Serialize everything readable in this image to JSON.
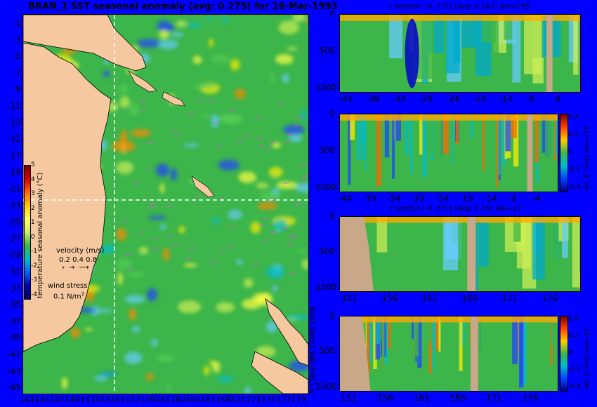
{
  "map": {
    "title": "BRAN_1 SST seasonal anomaly (avg: 0.275) for 16-Mar-1993",
    "colorbar_label": "temperature seasonal anomaly (°C)",
    "velocity_label": "velocity (m/s)",
    "velocity_scale": "0.2 0.4 0.8",
    "wind_label": "wind stress",
    "wind_scale": "0.1 N/m",
    "wind_scale_sup": "2",
    "colors": {
      "land": "#f5c8a0",
      "ocean": "#3cb54a",
      "background": "#0000ff",
      "crosshair": "#ffffff",
      "arrows": "#ff44ff"
    }
  },
  "copyright": "© Copyright CSIRO 2006",
  "chart_data": [
    {
      "type": "heatmap",
      "name": "sst-map",
      "title": "BRAN_1 SST seasonal anomaly (avg: 0.275) for 16-Mar-1993",
      "x_ticks": [
        "143",
        "145",
        "147",
        "149",
        "151",
        "153",
        "155",
        "157",
        "159",
        "161",
        "163",
        "165",
        "167",
        "169",
        "171",
        "173",
        "175",
        "177",
        "179"
      ],
      "y_ticks": [
        "-1",
        "-3",
        "-5",
        "-7",
        "-9",
        "-11",
        "-13",
        "-15",
        "-17",
        "-19",
        "-21",
        "-23",
        "-25",
        "-27",
        "-29",
        "-31",
        "-33",
        "-35",
        "-37",
        "-39",
        "-41",
        "-43",
        "-45"
      ],
      "xlim": [
        142,
        180
      ],
      "ylim": [
        -45,
        0
      ],
      "colorbar": {
        "label": "temperature seasonal anomaly (°C)",
        "ticks": [
          "5",
          "4",
          "3",
          "2",
          "1",
          "0",
          "-1",
          "-2",
          "-3",
          "-4"
        ],
        "range": [
          -4,
          5
        ]
      },
      "crosshair": {
        "lon": 155,
        "lat": -22
      }
    },
    {
      "type": "heatmap",
      "name": "t-section-lon",
      "title": "t section (-4..5°C) (avg: 0.167) lon=155",
      "x_ticks": [
        "-44",
        "-39",
        "-34",
        "-29",
        "-24",
        "-19",
        "-14",
        "-9",
        "-4"
      ],
      "y_ticks": [
        "0",
        "500",
        "1000"
      ],
      "xlim": [
        -45,
        0
      ],
      "ylim": [
        1050,
        0
      ]
    },
    {
      "type": "heatmap",
      "name": "vel-e-section-lon",
      "title": "",
      "x_ticks": [
        "-44",
        "-39",
        "-34",
        "-29",
        "-24",
        "-19",
        "-14",
        "-9",
        "-4"
      ],
      "y_ticks": [
        "0",
        "500",
        "1000"
      ],
      "xlim": [
        -45,
        0
      ],
      "ylim": [
        1050,
        0
      ],
      "colorbar": {
        "label": "vel. E (m/s) lon=155",
        "ticks": [
          "0.4",
          "0.2",
          "0",
          "-0.2",
          "-0.4"
        ],
        "range": [
          -0.4,
          0.4
        ]
      }
    },
    {
      "type": "heatmap",
      "name": "t-section-lat",
      "title": "t section (-4..5°C) (avg: 1.19) lat=-22",
      "x_ticks": [
        "151",
        "156",
        "161",
        "166",
        "171",
        "176"
      ],
      "y_ticks": [
        "0",
        "500",
        "1000"
      ],
      "xlim": [
        150,
        180
      ],
      "ylim": [
        1050,
        0
      ]
    },
    {
      "type": "heatmap",
      "name": "vel-e-section-lat",
      "title": "",
      "x_ticks": [
        "151",
        "156",
        "161",
        "166",
        "171",
        "176"
      ],
      "y_ticks": [
        "0",
        "500",
        "1000"
      ],
      "xlim": [
        150,
        180
      ],
      "ylim": [
        1050,
        0
      ],
      "colorbar": {
        "label": "vel. E (m/s) lat=-22",
        "ticks": [
          "0.4",
          "0.2",
          "0",
          "-0.2",
          "-0.4"
        ],
        "range": [
          -0.4,
          0.4
        ]
      }
    }
  ]
}
